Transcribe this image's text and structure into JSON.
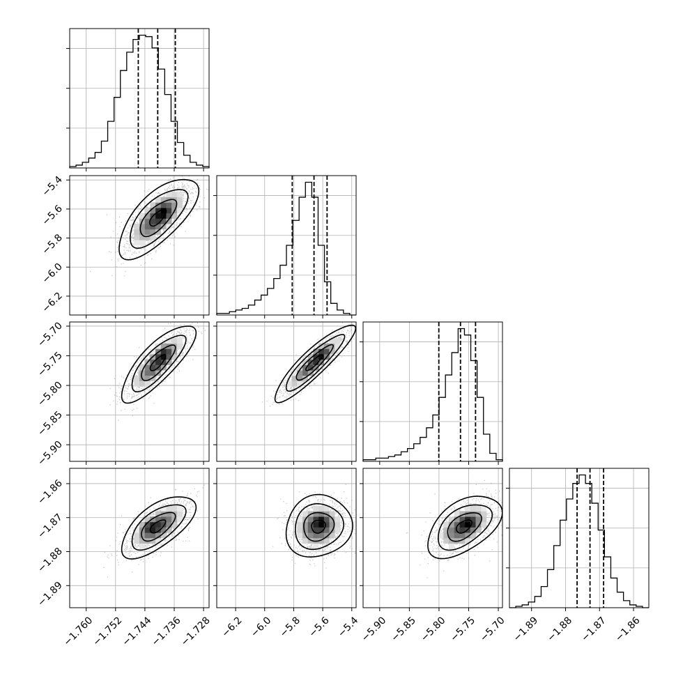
{
  "chart_data": {
    "type": "corner",
    "title": "",
    "grid": true,
    "colors": {
      "contour": "#000000",
      "grid": "#b0b0b0",
      "points": "#9a9a9a",
      "hist": "#000000"
    },
    "parameters": [
      {
        "range": [
          -1.7645,
          -1.7265
        ],
        "ticks": [
          -1.76,
          -1.752,
          -1.744,
          -1.736,
          -1.728
        ],
        "tick_labels": [
          "−1.760",
          "−1.752",
          "−1.744",
          "−1.736",
          "−1.728"
        ],
        "mean": -1.7405,
        "sd": 0.0043,
        "quantiles": [
          -1.7458,
          -1.7405,
          -1.7357
        ]
      },
      {
        "range": [
          -6.33,
          -5.37
        ],
        "ticks": [
          -6.2,
          -6.0,
          -5.8,
          -5.6,
          -5.4
        ],
        "tick_labels": [
          "−6.2",
          "−6.0",
          "−5.8",
          "−5.6",
          "−5.4"
        ],
        "mean": -5.66,
        "sd": 0.1,
        "quantiles": [
          -5.81,
          -5.66,
          -5.57
        ]
      },
      {
        "range": [
          -5.928,
          -5.693
        ],
        "ticks": [
          -5.9,
          -5.85,
          -5.8,
          -5.75,
          -5.7
        ],
        "tick_labels": [
          "−5.90",
          "−5.85",
          "−5.80",
          "−5.75",
          "−5.70"
        ],
        "mean": -5.758,
        "sd": 0.025,
        "quantiles": [
          -5.8003,
          -5.7638,
          -5.7384
        ]
      },
      {
        "range": [
          -1.8965,
          -1.8555
        ],
        "ticks": [
          -1.89,
          -1.88,
          -1.87,
          -1.86
        ],
        "tick_labels": [
          "−1.89",
          "−1.88",
          "−1.87",
          "−1.86"
        ],
        "mean": -1.8726,
        "sd": 0.0035,
        "quantiles": [
          -1.8766,
          -1.8728,
          -1.8688
        ]
      }
    ],
    "histograms": [
      {
        "param": 0,
        "counts": [
          1,
          2,
          4,
          7,
          11,
          19,
          33,
          50,
          69,
          82,
          91,
          94,
          93,
          85,
          70,
          52,
          33,
          18,
          9,
          4,
          2,
          1
        ]
      },
      {
        "param": 1,
        "counts": [
          1,
          1,
          2,
          3,
          4,
          6,
          9,
          12,
          16,
          22,
          30,
          42,
          57,
          71,
          80,
          71,
          42,
          20,
          7,
          3,
          1,
          0
        ]
      },
      {
        "param": 2,
        "counts": [
          1,
          1,
          2,
          2,
          3,
          4,
          6,
          8,
          11,
          15,
          21,
          29,
          40,
          54,
          68,
          83,
          79,
          63,
          40,
          17,
          5,
          1
        ]
      },
      {
        "param": 3,
        "counts": [
          0,
          1,
          2,
          4,
          8,
          15,
          27,
          44,
          62,
          77,
          88,
          94,
          88,
          74,
          55,
          36,
          21,
          11,
          5,
          2,
          1,
          0
        ]
      }
    ],
    "pairs": [
      {
        "row": 1,
        "col": 0,
        "center": [
          -1.7405,
          -5.66
        ],
        "sd": [
          0.0045,
          0.115
        ],
        "rho": 0.7,
        "peak": [
          -1.739,
          -5.62
        ]
      },
      {
        "row": 2,
        "col": 0,
        "center": [
          -1.7405,
          -5.762
        ],
        "sd": [
          0.0042,
          0.027
        ],
        "rho": 0.8,
        "peak": [
          -1.739,
          -5.745
        ]
      },
      {
        "row": 2,
        "col": 1,
        "center": [
          -5.66,
          -5.762
        ],
        "sd": [
          0.115,
          0.027
        ],
        "rho": 0.9,
        "peak": [
          -5.62,
          -5.745
        ]
      },
      {
        "row": 3,
        "col": 0,
        "center": [
          -1.7405,
          -1.8726
        ],
        "sd": [
          0.0042,
          0.0038
        ],
        "rho": 0.65,
        "peak": [
          -1.743,
          -1.8725
        ]
      },
      {
        "row": 3,
        "col": 1,
        "center": [
          -5.63,
          -1.8726
        ],
        "sd": [
          0.095,
          0.0038
        ],
        "rho": 0.1,
        "peak": [
          -5.61,
          -1.871
        ]
      },
      {
        "row": 3,
        "col": 2,
        "center": [
          -5.758,
          -1.8726
        ],
        "sd": [
          0.026,
          0.0038
        ],
        "rho": 0.5,
        "peak": [
          -5.75,
          -1.8715
        ]
      }
    ]
  }
}
